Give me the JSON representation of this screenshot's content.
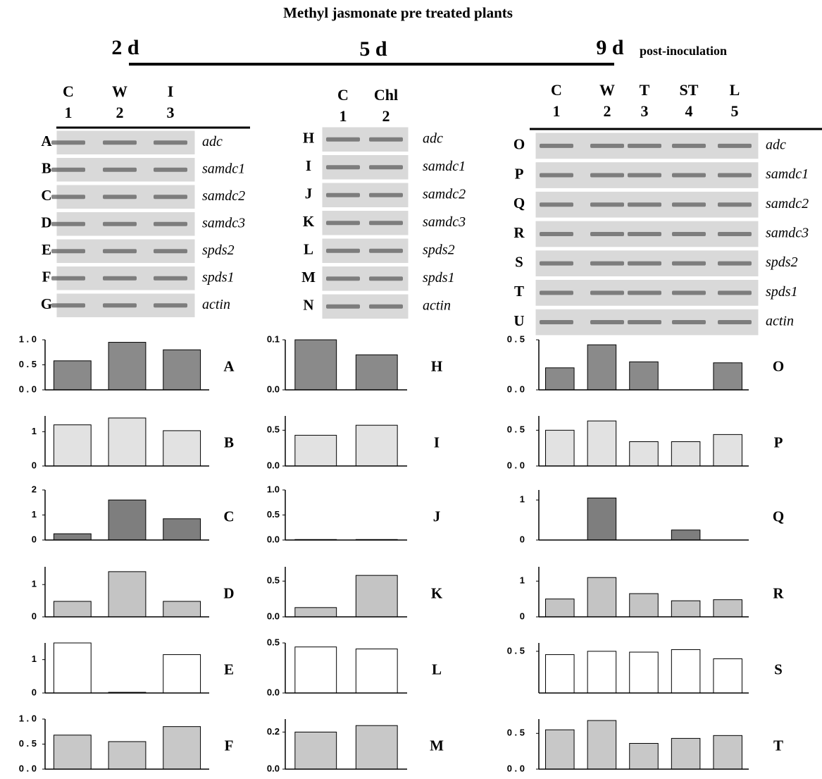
{
  "title": "Methyl jasmonate pre treated plants",
  "timepoints": [
    "2 d",
    "5 d",
    "9 d"
  ],
  "timepoint_note": "post-inoculation",
  "gels": [
    {
      "lanes": [
        {
          "name": "C",
          "number": "1"
        },
        {
          "name": "W",
          "number": "2"
        },
        {
          "name": "I",
          "number": "3"
        }
      ],
      "rows": [
        {
          "letter": "A",
          "gene": "adc"
        },
        {
          "letter": "B",
          "gene": "samdc1"
        },
        {
          "letter": "C",
          "gene": "samdc2"
        },
        {
          "letter": "D",
          "gene": "samdc3"
        },
        {
          "letter": "E",
          "gene": "spds2"
        },
        {
          "letter": "F",
          "gene": "spds1"
        },
        {
          "letter": "G",
          "gene": "actin"
        }
      ]
    },
    {
      "lanes": [
        {
          "name": "C",
          "number": "1"
        },
        {
          "name": "Chl",
          "number": "2"
        }
      ],
      "rows": [
        {
          "letter": "H",
          "gene": "adc"
        },
        {
          "letter": "I",
          "gene": "samdc1"
        },
        {
          "letter": "J",
          "gene": "samdc2"
        },
        {
          "letter": "K",
          "gene": "samdc3"
        },
        {
          "letter": "L",
          "gene": "spds2"
        },
        {
          "letter": "M",
          "gene": "spds1"
        },
        {
          "letter": "N",
          "gene": "actin"
        }
      ]
    },
    {
      "lanes": [
        {
          "name": "C",
          "number": "1"
        },
        {
          "name": "W",
          "number": "2"
        },
        {
          "name": "T",
          "number": "3"
        },
        {
          "name": "ST",
          "number": "4"
        },
        {
          "name": "L",
          "number": "5"
        }
      ],
      "rows": [
        {
          "letter": "O",
          "gene": "adc"
        },
        {
          "letter": "P",
          "gene": "samdc1"
        },
        {
          "letter": "Q",
          "gene": "samdc2"
        },
        {
          "letter": "R",
          "gene": "samdc3"
        },
        {
          "letter": "S",
          "gene": "spds2"
        },
        {
          "letter": "T",
          "gene": "spds1"
        },
        {
          "letter": "U",
          "gene": "actin"
        }
      ]
    }
  ],
  "chart_data": [
    {
      "type": "bar",
      "label": "A",
      "categories": [
        null,
        null,
        null
      ],
      "values": [
        0.58,
        0.95,
        0.8
      ],
      "color": "#8a8a8a",
      "ylim": [
        0,
        1
      ],
      "yticks": [
        {
          "value": 0,
          "label": "0 . 0"
        },
        {
          "value": 0.5,
          "label": "0 . 5"
        },
        {
          "value": 1,
          "label": "1 . 0"
        }
      ]
    },
    {
      "type": "bar",
      "label": "B",
      "categories": [
        null,
        null,
        null
      ],
      "values": [
        1.2,
        1.4,
        1.03
      ],
      "color": "#e2e2e2",
      "ylim": [
        0,
        1.46
      ],
      "yticks": [
        0,
        1
      ]
    },
    {
      "type": "bar",
      "label": "C",
      "categories": [
        null,
        null,
        null
      ],
      "values": [
        0.25,
        1.6,
        0.85
      ],
      "color": "#7e7e7e",
      "ylim": [
        0,
        2
      ],
      "yticks": [
        0,
        1,
        2
      ]
    },
    {
      "type": "bar",
      "label": "D",
      "categories": [
        null,
        null,
        null
      ],
      "values": [
        0.48,
        1.4,
        0.48
      ],
      "color": "#c4c4c4",
      "ylim": [
        0,
        1.55
      ],
      "yticks": [
        0,
        1
      ]
    },
    {
      "type": "bar",
      "label": "E",
      "categories": [
        null,
        null,
        null
      ],
      "values": [
        1.5,
        0.02,
        1.15
      ],
      "color": "#ffffff",
      "ylim": [
        0,
        1.5
      ],
      "yticks": [
        0,
        1
      ]
    },
    {
      "type": "bar",
      "label": "F",
      "categories": [
        null,
        null,
        null
      ],
      "values": [
        0.68,
        0.55,
        0.85
      ],
      "color": "#c8c8c8",
      "ylim": [
        0,
        1
      ],
      "yticks": [
        {
          "value": 0,
          "label": "0 . 0"
        },
        {
          "value": 0.5,
          "label": "0 . 5"
        },
        {
          "value": 1,
          "label": "1 . 0"
        }
      ]
    },
    {
      "type": "bar",
      "label": "H",
      "categories": [
        null,
        null
      ],
      "values": [
        0.1,
        0.07
      ],
      "color": "#8a8a8a",
      "ylim": [
        0,
        0.1
      ],
      "yticks": [
        {
          "value": 0,
          "label": "0.0"
        },
        0.1
      ]
    },
    {
      "type": "bar",
      "label": "I",
      "categories": [
        null,
        null
      ],
      "values": [
        0.43,
        0.57
      ],
      "color": "#e2e2e2",
      "ylim": [
        0,
        0.7
      ],
      "yticks": [
        {
          "value": 0,
          "label": "0.0"
        },
        0.5
      ]
    },
    {
      "type": "bar",
      "label": "J",
      "categories": [
        null,
        null
      ],
      "values": [
        0.01,
        0.01
      ],
      "color": "#7e7e7e",
      "ylim": [
        0,
        1
      ],
      "yticks": [
        {
          "value": 0,
          "label": "0.0"
        },
        0.5,
        {
          "value": 1,
          "label": "1.0"
        }
      ]
    },
    {
      "type": "bar",
      "label": "K",
      "categories": [
        null,
        null
      ],
      "values": [
        0.13,
        0.58
      ],
      "color": "#c4c4c4",
      "ylim": [
        0,
        0.7
      ],
      "yticks": [
        {
          "value": 0,
          "label": "0.0"
        },
        0.5
      ]
    },
    {
      "type": "bar",
      "label": "L",
      "categories": [
        null,
        null
      ],
      "values": [
        0.46,
        0.44
      ],
      "color": "#ffffff",
      "ylim": [
        0,
        0.5
      ],
      "yticks": [
        {
          "value": 0,
          "label": "0.0"
        },
        0.5
      ]
    },
    {
      "type": "bar",
      "label": "M",
      "categories": [
        null,
        null
      ],
      "values": [
        0.2,
        0.235
      ],
      "color": "#c8c8c8",
      "ylim": [
        0,
        0.27
      ],
      "yticks": [
        {
          "value": 0,
          "label": "0.0"
        },
        0.2
      ]
    },
    {
      "type": "bar",
      "label": "O",
      "categories": [
        null,
        null,
        null,
        null,
        null
      ],
      "values": [
        0.22,
        0.45,
        0.28,
        0,
        0.27
      ],
      "color": "#8a8a8a",
      "ylim": [
        0,
        0.5
      ],
      "yticks": [
        {
          "value": 0,
          "label": "0 . 0"
        },
        {
          "value": 0.5,
          "label": "0 . 5"
        }
      ]
    },
    {
      "type": "bar",
      "label": "P",
      "categories": [
        null,
        null,
        null,
        null,
        null
      ],
      "values": [
        0.5,
        0.63,
        0.34,
        0.34,
        0.44
      ],
      "color": "#e2e2e2",
      "ylim": [
        0,
        0.7
      ],
      "yticks": [
        {
          "value": 0,
          "label": "0 . 0"
        },
        {
          "value": 0.5,
          "label": "0 . 5"
        }
      ]
    },
    {
      "type": "bar",
      "label": "Q",
      "categories": [
        null,
        null,
        null,
        null,
        null
      ],
      "values": [
        0,
        1.05,
        0,
        0.25,
        0
      ],
      "color": "#7e7e7e",
      "ylim": [
        0,
        1.25
      ],
      "yticks": [
        0,
        1
      ]
    },
    {
      "type": "bar",
      "label": "R",
      "categories": [
        null,
        null,
        null,
        null,
        null
      ],
      "values": [
        0.5,
        1.1,
        0.65,
        0.45,
        0.48
      ],
      "color": "#c4c4c4",
      "ylim": [
        0,
        1.4
      ],
      "yticks": [
        0,
        1
      ]
    },
    {
      "type": "bar",
      "label": "S",
      "categories": [
        null,
        null,
        null,
        null,
        null
      ],
      "values": [
        0.46,
        0.5,
        0.49,
        0.52,
        0.41
      ],
      "color": "#ffffff",
      "ylim": [
        0,
        0.6
      ],
      "yticks": [
        {
          "value": 0.5,
          "label": "0 . 5"
        }
      ]
    },
    {
      "type": "bar",
      "label": "T",
      "categories": [
        null,
        null,
        null,
        null,
        null
      ],
      "values": [
        0.55,
        0.68,
        0.36,
        0.43,
        0.47
      ],
      "color": "#c8c8c8",
      "ylim": [
        0,
        0.7
      ],
      "yticks": [
        {
          "value": 0,
          "label": "0 . 0"
        },
        {
          "value": 0.5,
          "label": "0 . 5"
        }
      ]
    }
  ]
}
